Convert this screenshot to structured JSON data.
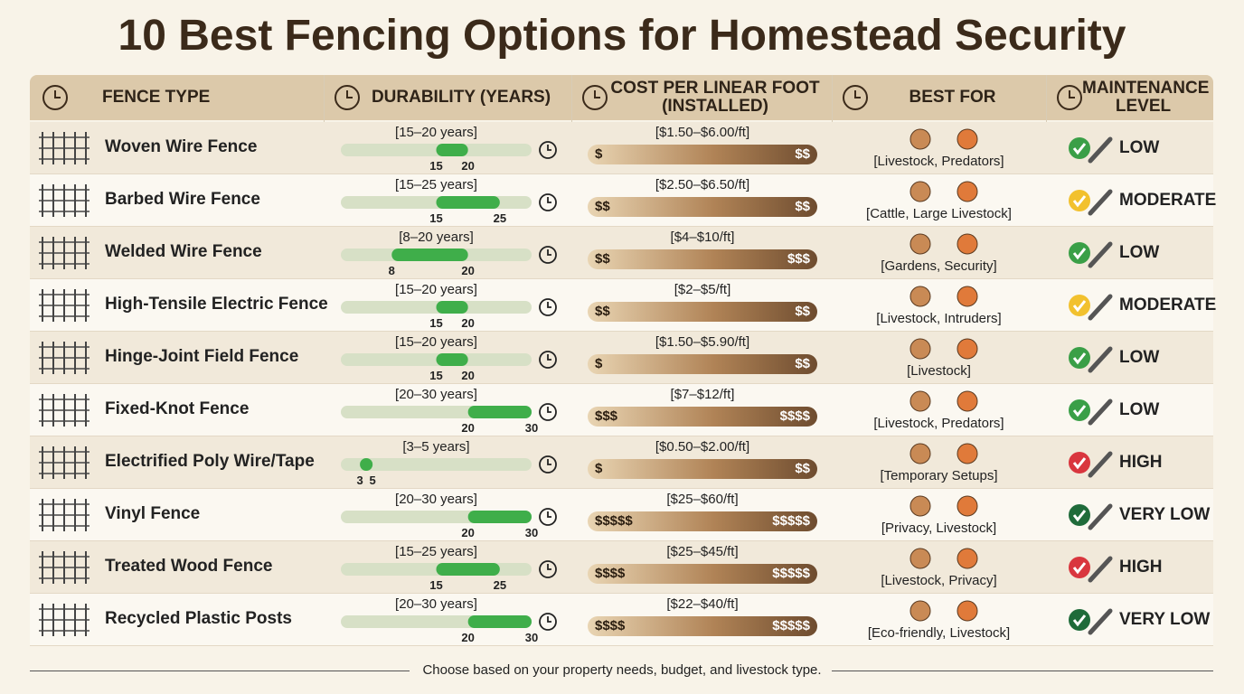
{
  "title": "10 Best Fencing Options for Homestead Security",
  "table": {
    "headers": [
      "FENCE TYPE",
      "DURABILITY (YEARS)",
      "COST PER LINEAR FOOT (INSTALLED)",
      "BEST FOR",
      "MAINTENANCE LEVEL"
    ],
    "rows": [
      {
        "type": "Woven Wire Fence",
        "durability": {
          "label": "[15–20 years]",
          "min": 15,
          "max": 20
        },
        "cost": {
          "label": "[$1.50–$6.00/ft]",
          "low": "$",
          "high": "$$"
        },
        "best_for": "[Livestock, Predators]",
        "maintenance": "LOW",
        "maintenance_color": "#3a9f47"
      },
      {
        "type": "Barbed Wire Fence",
        "durability": {
          "label": "[15–25 years]",
          "min": 15,
          "max": 25
        },
        "cost": {
          "label": "[$2.50–$6.50/ft]",
          "low": "$$",
          "high": "$$"
        },
        "best_for": "[Cattle, Large Livestock]",
        "maintenance": "MODERATE",
        "maintenance_color": "#f2c12e"
      },
      {
        "type": "Welded Wire Fence",
        "durability": {
          "label": "[8–20 years]",
          "min": 8,
          "max": 20
        },
        "cost": {
          "label": "[$4–$10/ft]",
          "low": "$$",
          "high": "$$$"
        },
        "best_for": "[Gardens, Security]",
        "maintenance": "LOW",
        "maintenance_color": "#3a9f47"
      },
      {
        "type": "High-Tensile Electric Fence",
        "durability": {
          "label": "[15–20 years]",
          "min": 15,
          "max": 20
        },
        "cost": {
          "label": "[$2–$5/ft]",
          "low": "$$",
          "high": "$$"
        },
        "best_for": "[Livestock, Intruders]",
        "maintenance": "MODERATE",
        "maintenance_color": "#f2c12e"
      },
      {
        "type": "Hinge-Joint Field Fence",
        "durability": {
          "label": "[15–20 years]",
          "min": 15,
          "max": 20
        },
        "cost": {
          "label": "[$1.50–$5.90/ft]",
          "low": "$",
          "high": "$$"
        },
        "best_for": "[Livestock]",
        "maintenance": "LOW",
        "maintenance_color": "#3a9f47"
      },
      {
        "type": "Fixed-Knot Fence",
        "durability": {
          "label": "[20–30 years]",
          "min": 20,
          "max": 30
        },
        "cost": {
          "label": "[$7–$12/ft]",
          "low": "$$$",
          "high": "$$$$"
        },
        "best_for": "[Livestock, Predators]",
        "maintenance": "LOW",
        "maintenance_color": "#3a9f47"
      },
      {
        "type": "Electrified Poly Wire/Tape",
        "durability": {
          "label": "[3–5 years]",
          "min": 3,
          "max": 5
        },
        "cost": {
          "label": "[$0.50–$2.00/ft]",
          "low": "$",
          "high": "$$"
        },
        "best_for": "[Temporary Setups]",
        "maintenance": "HIGH",
        "maintenance_color": "#d9363e"
      },
      {
        "type": "Vinyl Fence",
        "durability": {
          "label": "[20–30 years]",
          "min": 20,
          "max": 30
        },
        "cost": {
          "label": "[$25–$60/ft]",
          "low": "$$$$$",
          "high": "$$$$$"
        },
        "best_for": "[Privacy, Livestock]",
        "maintenance": "VERY LOW",
        "maintenance_color": "#1f6b3a"
      },
      {
        "type": "Treated Wood Fence",
        "durability": {
          "label": "[15–25 years]",
          "min": 15,
          "max": 25
        },
        "cost": {
          "label": "[$25–$45/ft]",
          "low": "$$$$",
          "high": "$$$$$"
        },
        "best_for": "[Livestock, Privacy]",
        "maintenance": "HIGH",
        "maintenance_color": "#d9363e"
      },
      {
        "type": "Recycled Plastic Posts",
        "durability": {
          "label": "[20–30 years]",
          "min": 20,
          "max": 30
        },
        "cost": {
          "label": "[$22–$40/ft]",
          "low": "$$$$",
          "high": "$$$$$"
        },
        "best_for": "[Eco-friendly, Livestock]",
        "maintenance": "VERY LOW",
        "maintenance_color": "#1f6b3a"
      }
    ]
  },
  "footer": "Choose based on your property needs, budget, and livestock type."
}
